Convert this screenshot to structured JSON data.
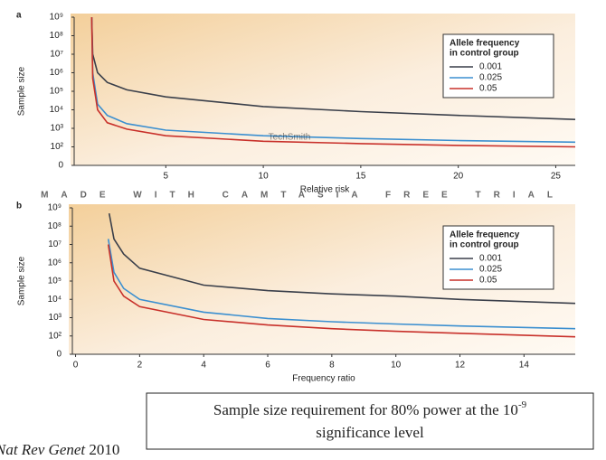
{
  "chart_data": [
    {
      "type": "line",
      "panel_label": "a",
      "x_label": "Relative risk",
      "y_label": "Sample size",
      "legend_title": [
        "Allele frequency",
        "in control group"
      ],
      "log_y": true,
      "xlim": [
        0.3,
        26
      ],
      "xticks": [
        5,
        10,
        15,
        20,
        25
      ],
      "ylim": [
        0,
        1000000000
      ],
      "yticks": [
        0,
        {
          "value": 100,
          "label": "10²"
        },
        {
          "value": 1000,
          "label": "10³"
        },
        {
          "value": 10000,
          "label": "10⁴"
        },
        {
          "value": 100000,
          "label": "10⁵"
        },
        {
          "value": 1000000,
          "label": "10⁶"
        },
        {
          "value": 10000000,
          "label": "10⁷"
        },
        {
          "value": 100000000,
          "label": "10⁸"
        },
        {
          "value": 1000000000,
          "label": "10⁹"
        }
      ],
      "series": [
        {
          "name": "0.001",
          "color": "#3a3f4a",
          "x": [
            1.2,
            1.25,
            1.5,
            2,
            3,
            5,
            10,
            15,
            20,
            26
          ],
          "values": [
            1000000000,
            10000000,
            1000000,
            300000,
            120000,
            50000,
            15000,
            8000,
            5000,
            3000
          ]
        },
        {
          "name": "0.025",
          "color": "#3b8fd0",
          "x": [
            1.2,
            1.25,
            1.5,
            2,
            3,
            5,
            10,
            15,
            20,
            26
          ],
          "values": [
            1000000000,
            1000000,
            20000,
            5000,
            1800,
            800,
            400,
            280,
            220,
            180
          ]
        },
        {
          "name": "0.05",
          "color": "#c8302a",
          "x": [
            1.2,
            1.25,
            1.5,
            2,
            3,
            5,
            10,
            15,
            20,
            26
          ],
          "values": [
            1000000000,
            500000,
            10000,
            2000,
            900,
            400,
            200,
            150,
            120,
            100
          ]
        }
      ]
    },
    {
      "type": "line",
      "panel_label": "b",
      "x_label": "Frequency ratio",
      "y_label": "Sample size",
      "legend_title": [
        "Allele frequency",
        "in control group"
      ],
      "log_y": true,
      "xlim": [
        -0.1,
        15.6
      ],
      "xticks": [
        0,
        2,
        4,
        6,
        8,
        10,
        12,
        14
      ],
      "ylim": [
        0,
        1000000000
      ],
      "yticks": [
        0,
        {
          "value": 100,
          "label": "10²"
        },
        {
          "value": 1000,
          "label": "10³"
        },
        {
          "value": 10000,
          "label": "10⁴"
        },
        {
          "value": 100000,
          "label": "10⁵"
        },
        {
          "value": 1000000,
          "label": "10⁶"
        },
        {
          "value": 10000000,
          "label": "10⁷"
        },
        {
          "value": 100000000,
          "label": "10⁸"
        },
        {
          "value": 1000000000,
          "label": "10⁹"
        }
      ],
      "series": [
        {
          "name": "0.001",
          "color": "#3a3f4a",
          "x": [
            1.05,
            1.2,
            1.5,
            2,
            4,
            6,
            8,
            10,
            12,
            15.6
          ],
          "values": [
            500000000,
            20000000,
            3000000,
            500000,
            60000,
            30000,
            20000,
            15000,
            10000,
            6000
          ]
        },
        {
          "name": "0.025",
          "color": "#3b8fd0",
          "x": [
            1.02,
            1.2,
            1.5,
            2,
            4,
            6,
            8,
            10,
            12,
            15.6
          ],
          "values": [
            20000000,
            300000,
            40000,
            10000,
            2000,
            900,
            600,
            450,
            350,
            250
          ]
        },
        {
          "name": "0.05",
          "color": "#c8302a",
          "x": [
            1.02,
            1.2,
            1.5,
            2,
            4,
            6,
            8,
            10,
            12,
            15.6
          ],
          "values": [
            10000000,
            100000,
            15000,
            4000,
            800,
            400,
            250,
            180,
            140,
            90
          ]
        }
      ]
    }
  ],
  "watermark": {
    "brand": "TechSmith",
    "banner": "MADE WITH CAMTASIA FREE TRIAL"
  },
  "caption": {
    "text": "Sample size requirement for 80% power at the 10",
    "superscript": "-9",
    "line2": "significance level"
  },
  "citation": {
    "journal": "Nat Rev Genet",
    "year": "2010"
  }
}
